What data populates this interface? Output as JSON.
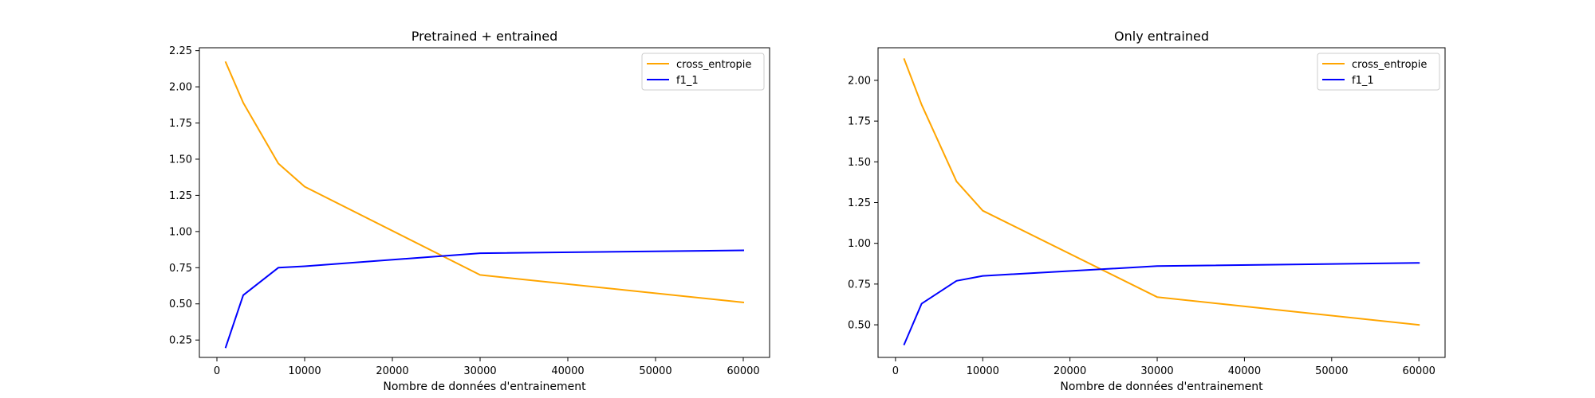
{
  "colors": {
    "cross_entropie": "#ffa500",
    "f1_1": "#0000ff"
  },
  "chart_data": [
    {
      "type": "line",
      "title": "Pretrained + entrained",
      "xlabel": "Nombre de données d'entrainement",
      "ylabel": "",
      "xlim": [
        -2000,
        63000
      ],
      "ylim": [
        0.13,
        2.27
      ],
      "xticks": [
        0,
        10000,
        20000,
        30000,
        40000,
        50000,
        60000
      ],
      "yticks": [
        0.25,
        0.5,
        0.75,
        1.0,
        1.25,
        1.5,
        1.75,
        2.0,
        2.25
      ],
      "ytick_decimals": 2,
      "legend": "top-right",
      "grid": false,
      "series": [
        {
          "name": "cross_entropie",
          "color": "#ffa500",
          "x": [
            1000,
            3000,
            7000,
            10000,
            30000,
            60000
          ],
          "y": [
            2.17,
            1.89,
            1.47,
            1.31,
            0.7,
            0.51
          ]
        },
        {
          "name": "f1_1",
          "color": "#0000ff",
          "x": [
            1000,
            3000,
            7000,
            10000,
            30000,
            60000
          ],
          "y": [
            0.2,
            0.56,
            0.75,
            0.76,
            0.85,
            0.87
          ]
        }
      ]
    },
    {
      "type": "line",
      "title": "Only entrained",
      "xlabel": "Nombre de données d'entrainement",
      "ylabel": "",
      "xlim": [
        -2000,
        63000
      ],
      "ylim": [
        0.3,
        2.2
      ],
      "xticks": [
        0,
        10000,
        20000,
        30000,
        40000,
        50000,
        60000
      ],
      "yticks": [
        0.5,
        0.75,
        1.0,
        1.25,
        1.5,
        1.75,
        2.0
      ],
      "ytick_decimals": 2,
      "legend": "top-right",
      "grid": false,
      "series": [
        {
          "name": "cross_entropie",
          "color": "#ffa500",
          "x": [
            1000,
            3000,
            7000,
            10000,
            30000,
            60000
          ],
          "y": [
            2.13,
            1.85,
            1.38,
            1.2,
            0.67,
            0.5
          ]
        },
        {
          "name": "f1_1",
          "color": "#0000ff",
          "x": [
            1000,
            3000,
            7000,
            10000,
            30000,
            60000
          ],
          "y": [
            0.38,
            0.63,
            0.77,
            0.8,
            0.86,
            0.88
          ]
        }
      ]
    }
  ]
}
